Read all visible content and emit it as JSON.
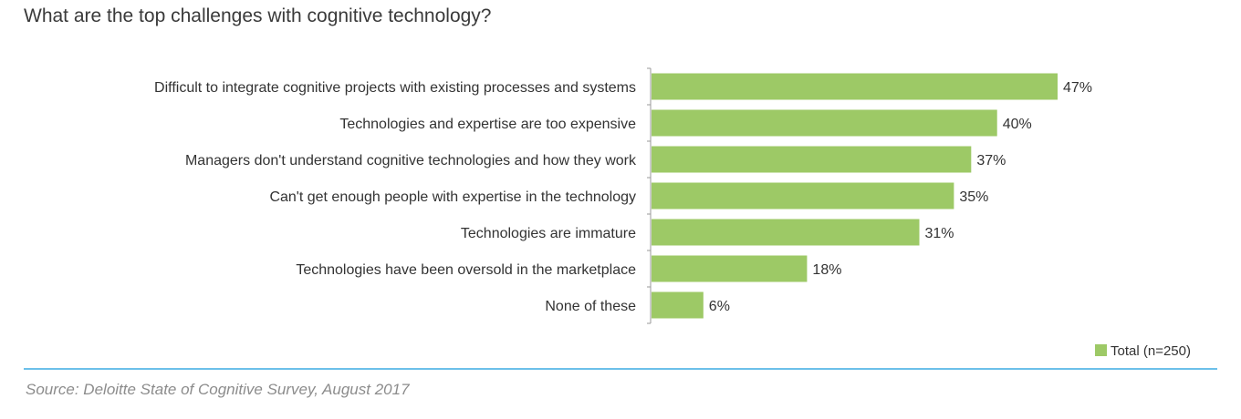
{
  "title": "What are the top challenges with cognitive technology?",
  "source": "Source: Deloitte State of Cognitive Survey, August 2017",
  "chart_data": {
    "type": "bar",
    "orientation": "horizontal",
    "title": "What are the top challenges with cognitive technology?",
    "categories": [
      "Difficult to integrate cognitive projects with existing processes and systems",
      "Technologies and expertise are too expensive",
      "Managers don't understand cognitive technologies and how they work",
      "Can't get enough people with expertise in the technology",
      "Technologies are immature",
      "Technologies have been oversold in the marketplace",
      "None of these"
    ],
    "series": [
      {
        "name": "Total (n=250)",
        "color": "#9dc966",
        "values": [
          47,
          40,
          37,
          35,
          31,
          18,
          6
        ],
        "labels": [
          "47%",
          "40%",
          "37%",
          "35%",
          "31%",
          "18%",
          "6%"
        ]
      }
    ],
    "xlim": [
      0,
      50
    ],
    "unit": "%",
    "grid": false,
    "legend": "bottom-right"
  }
}
